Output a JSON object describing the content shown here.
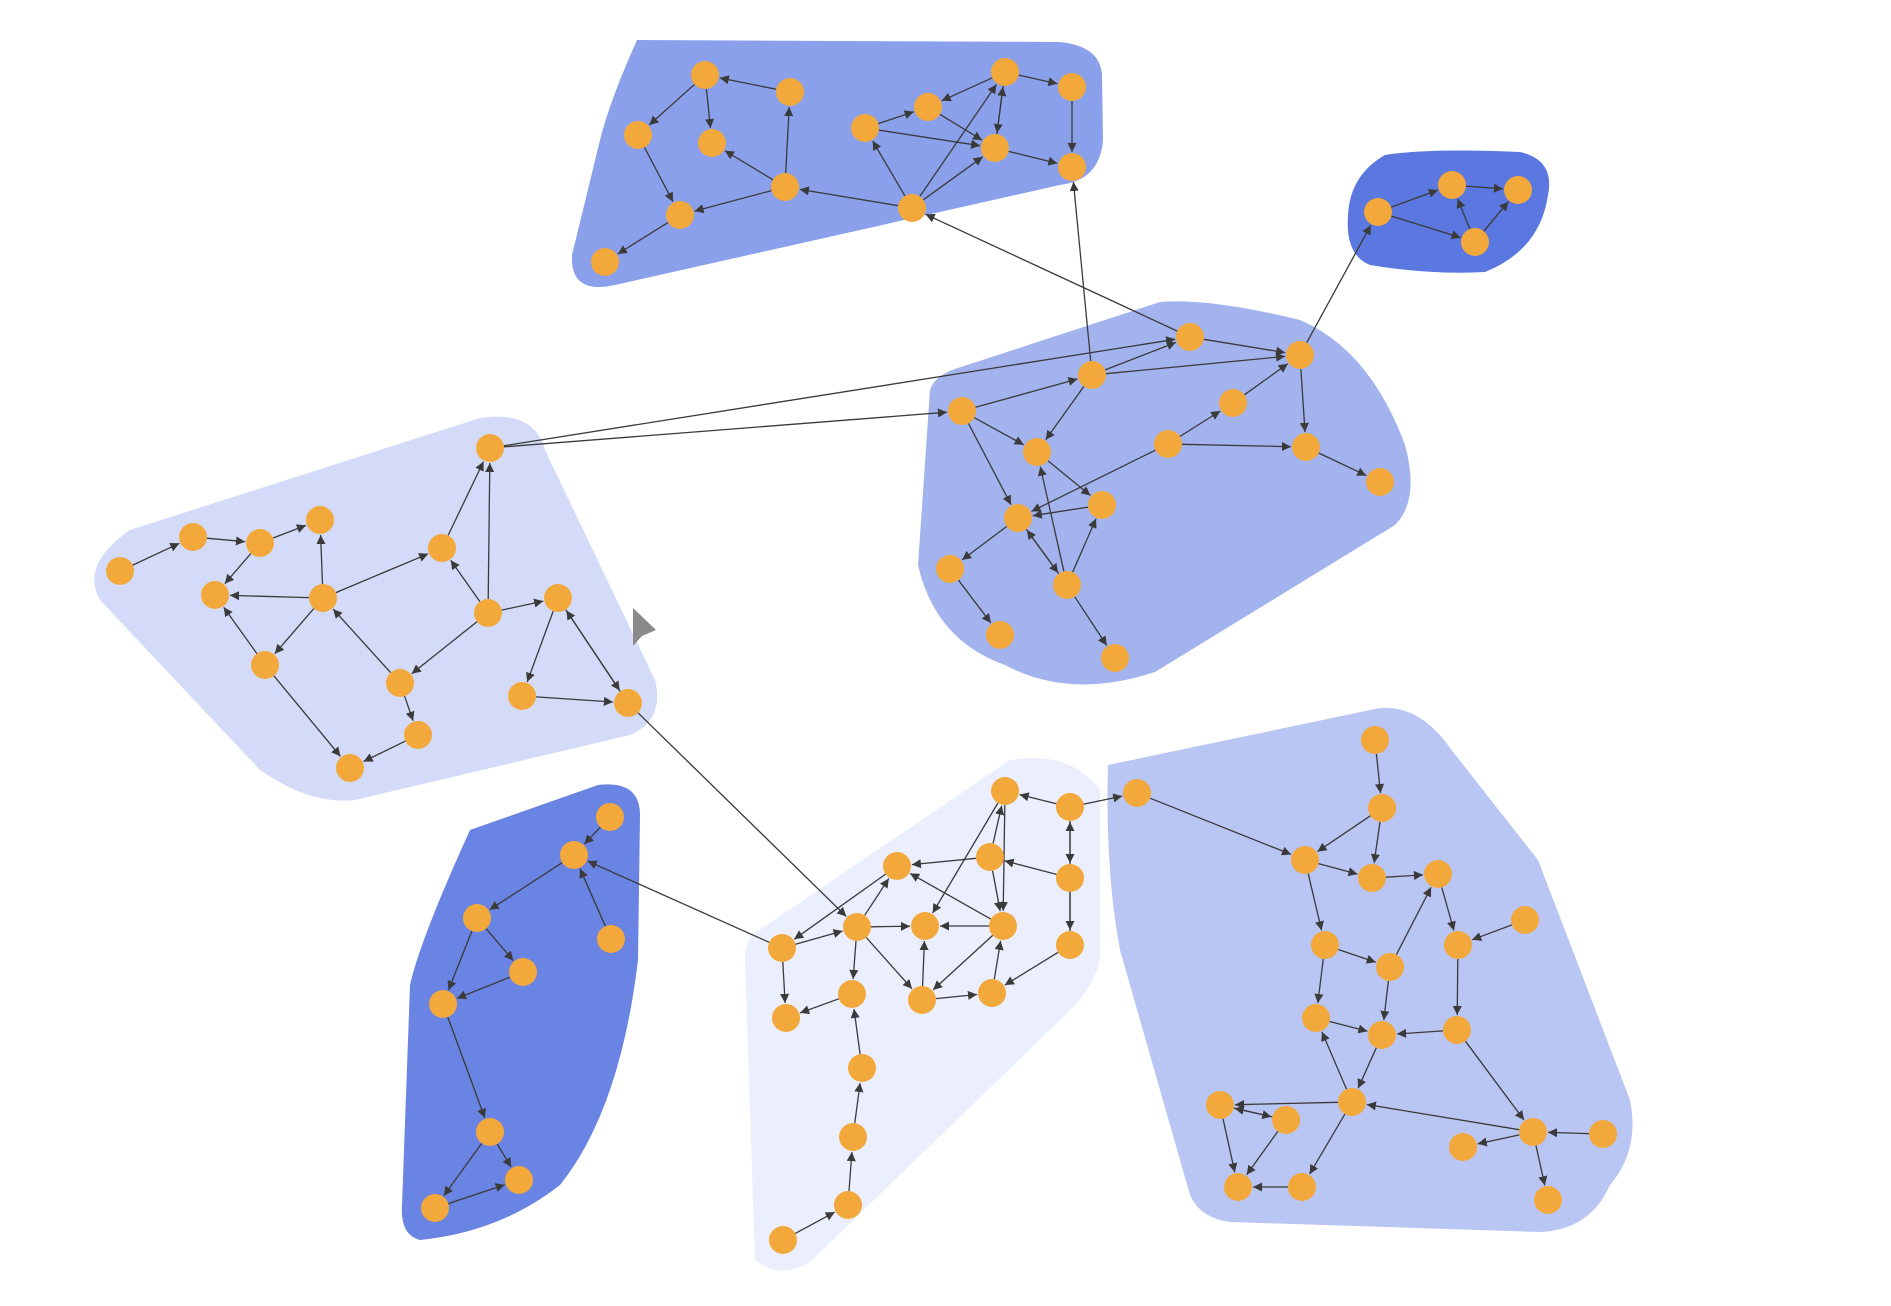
{
  "colors": {
    "background": "#ffffff",
    "node": "#f2a83b",
    "edge": "#3a3a3a",
    "cursor": "#8a8a8a"
  },
  "clusters": [
    {
      "id": "cluster-top",
      "fill": "#8aa0eb"
    },
    {
      "id": "cluster-small",
      "fill": "#5b77e0"
    },
    {
      "id": "cluster-right-middle",
      "fill": "#a2b3ee"
    },
    {
      "id": "cluster-left",
      "fill": "#d3dbf8"
    },
    {
      "id": "cluster-bottom-left",
      "fill": "#6a84e3"
    },
    {
      "id": "cluster-bottom-middle",
      "fill": "#ebeefc"
    },
    {
      "id": "cluster-bottom-right",
      "fill": "#b9c6f3"
    }
  ],
  "node_count": 105,
  "cursor": {
    "icon": "mouse-pointer-icon"
  }
}
